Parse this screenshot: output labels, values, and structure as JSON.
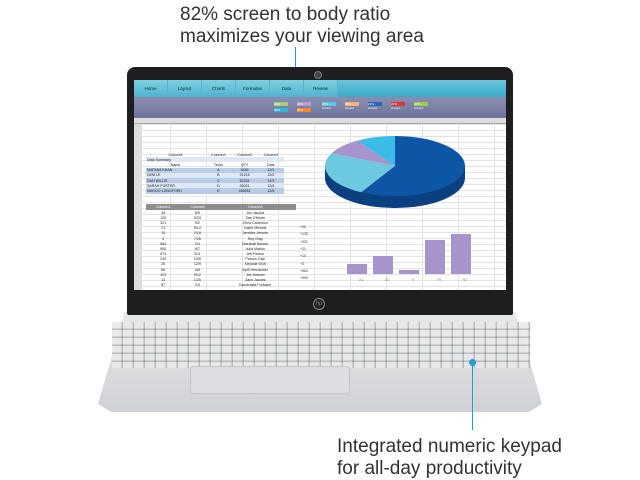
{
  "callouts": {
    "screen": "82% screen to body ratio maximizes your viewing area",
    "keypad": "Integrated numeric keypad for all-day productivity"
  },
  "colors": {
    "callout_line": "#1f9fd6",
    "ribbon": "#3aa9c6",
    "bars": "#a894cc",
    "pie": [
      "#0d56a6",
      "#6cc9e0",
      "#a894cc",
      "#3bbbe8"
    ]
  },
  "ribbon_tabs": [
    "Home",
    "Layout",
    "Charts",
    "Formulas",
    "Data",
    "Review"
  ],
  "style_chips": [
    "20%",
    "20%",
    "20% - Accent",
    "20% - Accent",
    "20% - Accent",
    "20% - Accent",
    "20% - Accent",
    "40%",
    "40%"
  ],
  "table1": {
    "headers": [
      "Column1",
      "Column2",
      "Column3",
      "Column4"
    ],
    "title": "Data Summary",
    "subheaders": [
      "Name",
      "Team",
      "QTY",
      "Date"
    ],
    "rows": [
      [
        "MARIAM KHAN",
        "A",
        "5454",
        "12/1"
      ],
      [
        "DEM LE",
        "B",
        "21215",
        "12/2"
      ],
      [
        "DAN WILLIS",
        "C",
        "52251",
        "12/3"
      ],
      [
        "SARAH FOSTER",
        "D",
        "35021",
        "12/4"
      ],
      [
        "MARGO LONGFORD",
        "E",
        "456551",
        "12/5"
      ]
    ]
  },
  "table2": {
    "headers": [
      "Column1",
      "Column2",
      "Column3"
    ],
    "rows": [
      [
        "45",
        "6/9",
        "Jim Jacobs"
      ],
      [
        "125",
        "5/23",
        "Dan Effman"
      ],
      [
        "321",
        "9/2",
        "Chris Carterson"
      ],
      [
        "21",
        "5/14",
        "Kaleb Michels"
      ],
      [
        "10",
        "2/18",
        "Jennifer Jenson"
      ],
      [
        "3",
        "7/26",
        "Roy Gray"
      ],
      [
        "564",
        "2/4",
        "Marshall Besser"
      ],
      [
        "900",
        "8/7",
        "Julia Marion"
      ],
      [
        "574",
        "3/11",
        "Jeff Paxton"
      ],
      [
        "245",
        "10/6",
        "Parson Cale"
      ],
      [
        "26",
        "12/9",
        "Melanie Wolf"
      ],
      [
        "56",
        "6/8",
        "April Hernandez"
      ],
      [
        "123",
        "9/12",
        "Joe Antonio"
      ],
      [
        "13",
        "1/25",
        "Zach Jacobs"
      ],
      [
        "87",
        "2/3",
        "Esmeralda Fontaine"
      ]
    ]
  },
  "side_labels": [
    "+45",
    "+125",
    "+321",
    "+21",
    "+10",
    "+3",
    "+564",
    "+900"
  ],
  "bar_chart": {
    "values": [
      24,
      42,
      9,
      79,
      92
    ]
  },
  "pie_chart": {
    "values": [
      58,
      24,
      9,
      9
    ]
  },
  "brand_logo": "hp"
}
